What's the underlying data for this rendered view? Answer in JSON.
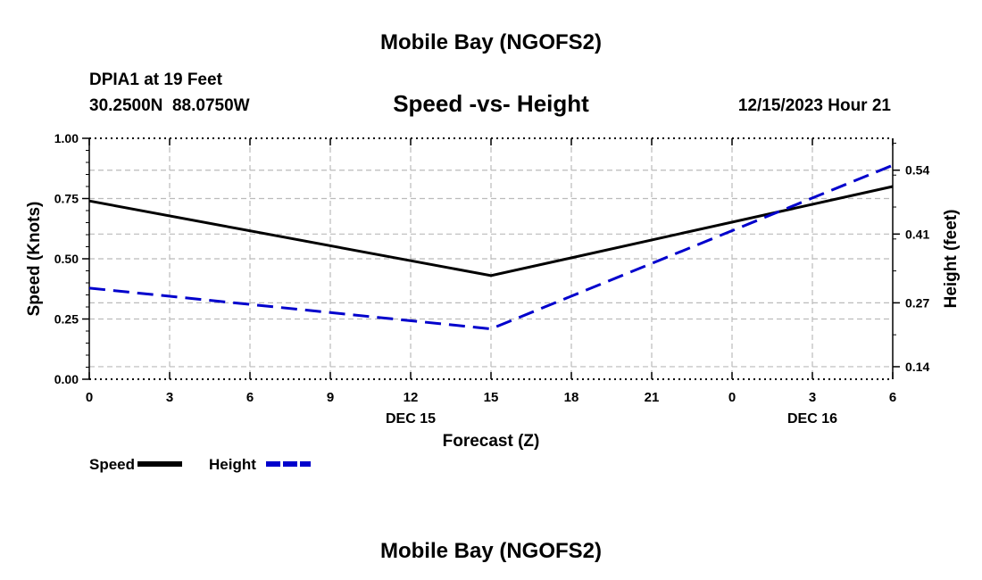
{
  "header": {
    "title": "Mobile Bay (NGOFS2)",
    "station": "DPIA1 at 19 Feet",
    "coords": "30.2500N  88.0750W",
    "datetime": "12/15/2023 Hour 21",
    "footer_title": "Mobile Bay (NGOFS2)"
  },
  "chart_data": {
    "type": "line",
    "title": "Speed -vs- Height",
    "xlabel": "Forecast (Z)",
    "ylabel": "Speed (Knots)",
    "y2label": "Height (feet)",
    "x": [
      0,
      3,
      6,
      9,
      12,
      15,
      18,
      21,
      24,
      27,
      30
    ],
    "x_tick_labels": [
      "0",
      "3",
      "6",
      "9",
      "12",
      "15",
      "18",
      "21",
      "0",
      "3",
      "6"
    ],
    "date_labels": [
      {
        "x": 12,
        "label": "DEC 15"
      },
      {
        "x": 27,
        "label": "DEC 16"
      }
    ],
    "xlim": [
      0,
      30
    ],
    "ylim": [
      0,
      1.0
    ],
    "y_ticks": [
      0,
      0.25,
      0.5,
      0.75,
      1.0
    ],
    "y_tick_labels": [
      "0.00",
      "0.25",
      "0.50",
      "0.75",
      "1.00"
    ],
    "y2lim": [
      0.1145,
      0.6049
    ],
    "y2_ticks": [
      0.14,
      0.27,
      0.41,
      0.54
    ],
    "y2_tick_labels": [
      "0.14",
      "0.27",
      "0.41",
      "0.54"
    ],
    "grid": true,
    "series": [
      {
        "name": "Speed",
        "axis": "left",
        "color": "#000000",
        "dash": "solid",
        "x": [
          0,
          15,
          30
        ],
        "y": [
          0.74,
          0.43,
          0.8
        ]
      },
      {
        "name": "Height",
        "axis": "right",
        "color": "#0000cc",
        "dash": "dashed",
        "x": [
          0,
          15,
          30
        ],
        "y": [
          0.3,
          0.217,
          0.55
        ]
      }
    ],
    "legend": [
      {
        "label": "Speed",
        "color": "#000000",
        "dash": "solid"
      },
      {
        "label": "Height",
        "color": "#0000cc",
        "dash": "dashed"
      }
    ]
  }
}
